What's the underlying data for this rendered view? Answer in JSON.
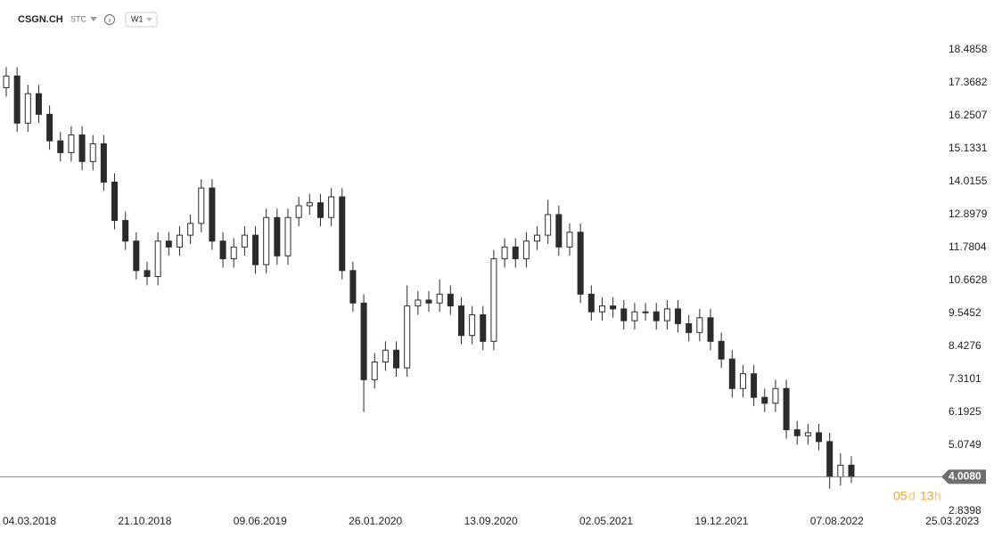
{
  "header": {
    "symbol": "CSGN.CH",
    "mode": "STC",
    "timeframe": "W1"
  },
  "countdown": [
    "05",
    "d",
    "13",
    "h"
  ],
  "chart_data": {
    "type": "candlestick",
    "up_color": "#ffffff",
    "down_color": "#2b2b2b",
    "outline_color": "#2b2b2b",
    "ylim": [
      2.8398,
      18.4858
    ],
    "yticks": [
      18.4858,
      17.3682,
      16.2507,
      15.1331,
      14.0155,
      12.8979,
      11.7804,
      10.6628,
      9.5452,
      8.4276,
      7.3101,
      6.1925,
      5.0749,
      2.8398
    ],
    "xticks": [
      "04.03.2018",
      "21.10.2018",
      "09.06.2019",
      "26.01.2020",
      "13.09.2020",
      "02.05.2021",
      "19.12.2021",
      "07.08.2022",
      "25.03.2023"
    ],
    "last_price": {
      "value": 4.008,
      "label": "4.0080"
    },
    "open": [
      17.2,
      17.6,
      16.0,
      17.0,
      16.3,
      15.4,
      15.0,
      15.6,
      14.7,
      15.3,
      14.0,
      12.7,
      12.0,
      11.0,
      10.8,
      12.0,
      11.8,
      12.2,
      12.6,
      13.8,
      12.0,
      11.4,
      11.8,
      12.2,
      11.2,
      12.8,
      11.5,
      12.8,
      13.2,
      13.3,
      12.8,
      13.5,
      11.0,
      9.9,
      7.3,
      7.9,
      8.3,
      7.7,
      9.8,
      10.0,
      9.9,
      10.2,
      9.8,
      8.8,
      9.5,
      8.6,
      11.4,
      11.8,
      11.4,
      12.0,
      12.2,
      12.9,
      11.8,
      12.3,
      10.2,
      9.6,
      9.8,
      9.7,
      9.3,
      9.6,
      9.6,
      9.3,
      9.7,
      9.2,
      8.9,
      9.4,
      8.6,
      8.0,
      7.0,
      7.5,
      6.7,
      6.5,
      7.0,
      5.6,
      5.4,
      5.5,
      5.2,
      4.0,
      4.4
    ],
    "high": [
      17.9,
      17.9,
      17.3,
      17.3,
      16.6,
      15.7,
      15.9,
      15.9,
      15.6,
      15.6,
      14.3,
      13.0,
      12.3,
      11.3,
      12.3,
      12.3,
      12.5,
      12.9,
      14.1,
      14.1,
      12.3,
      12.1,
      12.5,
      12.5,
      13.1,
      13.1,
      13.1,
      13.5,
      13.6,
      13.6,
      13.8,
      13.8,
      11.3,
      10.2,
      8.2,
      8.6,
      8.6,
      10.5,
      10.3,
      10.3,
      10.7,
      10.5,
      10.1,
      9.8,
      9.8,
      11.7,
      12.1,
      12.1,
      12.3,
      12.5,
      13.4,
      13.2,
      12.6,
      12.6,
      10.5,
      10.1,
      10.1,
      10.0,
      9.9,
      9.9,
      9.9,
      10.0,
      10.0,
      9.5,
      9.7,
      9.7,
      8.9,
      8.3,
      7.8,
      7.8,
      7.0,
      7.3,
      7.3,
      5.9,
      5.8,
      5.8,
      5.5,
      4.8,
      4.7
    ],
    "low": [
      16.9,
      15.7,
      15.7,
      16.0,
      15.1,
      14.7,
      14.7,
      14.4,
      14.4,
      13.7,
      12.4,
      11.7,
      10.7,
      10.5,
      10.5,
      11.5,
      11.5,
      11.9,
      12.3,
      11.7,
      11.1,
      11.1,
      11.5,
      10.9,
      10.9,
      11.2,
      11.2,
      12.5,
      12.9,
      12.5,
      12.5,
      10.7,
      9.6,
      6.2,
      7.0,
      7.6,
      7.4,
      7.4,
      9.5,
      9.6,
      9.6,
      9.5,
      8.5,
      8.5,
      8.3,
      8.3,
      11.1,
      11.1,
      11.1,
      11.7,
      11.9,
      11.5,
      11.5,
      9.9,
      9.3,
      9.3,
      9.4,
      9.0,
      9.0,
      9.3,
      9.0,
      9.0,
      8.9,
      8.6,
      8.6,
      8.3,
      7.7,
      6.7,
      6.7,
      6.4,
      6.2,
      6.2,
      5.3,
      5.1,
      5.1,
      4.9,
      3.6,
      3.7,
      3.8
    ],
    "close": [
      17.6,
      16.0,
      17.0,
      16.3,
      15.4,
      15.0,
      15.6,
      14.7,
      15.3,
      14.0,
      12.7,
      12.0,
      11.0,
      10.8,
      12.0,
      11.8,
      12.2,
      12.6,
      13.8,
      12.0,
      11.4,
      11.8,
      12.2,
      11.2,
      12.8,
      11.5,
      12.8,
      13.2,
      13.3,
      12.8,
      13.5,
      11.0,
      9.9,
      7.3,
      7.9,
      8.3,
      7.7,
      9.8,
      10.0,
      9.9,
      10.2,
      9.8,
      8.8,
      9.5,
      8.6,
      11.4,
      11.8,
      11.4,
      12.0,
      12.2,
      12.9,
      11.8,
      12.3,
      10.2,
      9.6,
      9.8,
      9.7,
      9.3,
      9.6,
      9.6,
      9.3,
      9.7,
      9.2,
      8.9,
      9.4,
      8.6,
      8.0,
      7.0,
      7.5,
      6.7,
      6.5,
      7.0,
      5.6,
      5.4,
      5.5,
      5.2,
      4.0,
      4.4,
      4.0
    ]
  }
}
